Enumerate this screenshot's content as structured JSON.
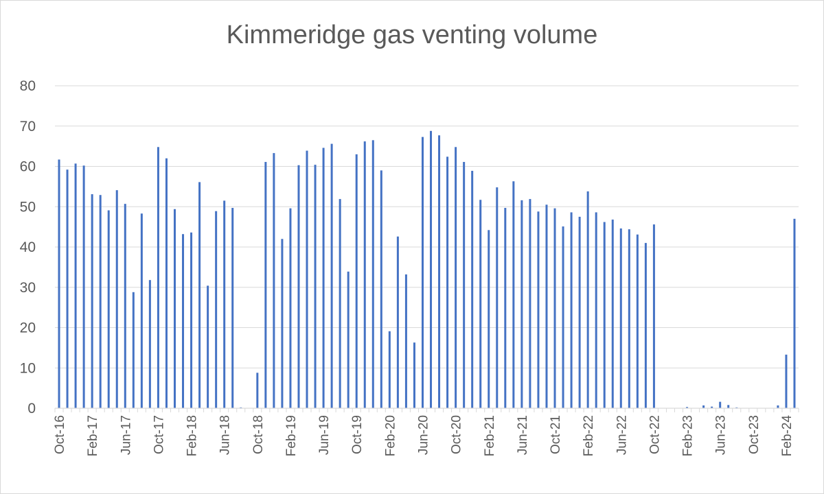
{
  "chart_data": {
    "type": "bar",
    "title": "Kimmeridge gas venting volume",
    "xlabel": "",
    "ylabel": "",
    "ylim": [
      0,
      80
    ],
    "yticks": [
      "0",
      "10",
      "20",
      "30",
      "40",
      "50",
      "60",
      "70",
      "80"
    ],
    "grid": true,
    "legend": "none",
    "bar_color": "#4472c4",
    "categories": [
      "Oct-16",
      "Nov-16",
      "Dec-16",
      "Jan-17",
      "Feb-17",
      "Mar-17",
      "Apr-17",
      "May-17",
      "Jun-17",
      "Jul-17",
      "Aug-17",
      "Sep-17",
      "Oct-17",
      "Nov-17",
      "Dec-17",
      "Jan-18",
      "Feb-18",
      "Mar-18",
      "Apr-18",
      "May-18",
      "Jun-18",
      "Jul-18",
      "Aug-18",
      "Sep-18",
      "Oct-18",
      "Nov-18",
      "Dec-18",
      "Jan-19",
      "Feb-19",
      "Mar-19",
      "Apr-19",
      "May-19",
      "Jun-19",
      "Jul-19",
      "Aug-19",
      "Sep-19",
      "Oct-19",
      "Nov-19",
      "Dec-19",
      "Jan-20",
      "Feb-20",
      "Mar-20",
      "Apr-20",
      "May-20",
      "Jun-20",
      "Jul-20",
      "Aug-20",
      "Sep-20",
      "Oct-20",
      "Nov-20",
      "Dec-20",
      "Jan-21",
      "Feb-21",
      "Mar-21",
      "Apr-21",
      "May-21",
      "Jun-21",
      "Jul-21",
      "Aug-21",
      "Sep-21",
      "Oct-21",
      "Nov-21",
      "Dec-21",
      "Jan-22",
      "Feb-22",
      "Mar-22",
      "Apr-22",
      "May-22",
      "Jun-22",
      "Jul-22",
      "Aug-22",
      "Sep-22",
      "Oct-22",
      "Nov-22",
      "Dec-22",
      "Jan-23",
      "Feb-23",
      "Mar-23",
      "Apr-23",
      "May-23",
      "Jun-23",
      "Jul-23",
      "Aug-23",
      "Sep-23",
      "Oct-23",
      "Nov-23",
      "Dec-23",
      "Jan-24",
      "Feb-24",
      "Mar-24"
    ],
    "xtick_labels": [
      "Oct-16",
      "Feb-17",
      "Jun-17",
      "Oct-17",
      "Feb-18",
      "Jun-18",
      "Oct-18",
      "Feb-19",
      "Jun-19",
      "Oct-19",
      "Feb-20",
      "Jun-20",
      "Oct-20",
      "Feb-21",
      "Jun-21",
      "Oct-21",
      "Feb-22",
      "Jun-22",
      "Oct-22",
      "Feb-23",
      "Jun-23",
      "Oct-23",
      "Feb-24"
    ],
    "values": [
      61.7,
      59.2,
      60.7,
      60.2,
      53.1,
      52.9,
      49.1,
      54.1,
      50.7,
      28.8,
      48.3,
      31.8,
      64.8,
      62.0,
      49.4,
      43.2,
      43.6,
      56.1,
      30.4,
      48.9,
      51.5,
      49.7,
      0.2,
      0,
      8.8,
      61.1,
      63.3,
      42.0,
      49.6,
      60.3,
      63.9,
      60.4,
      64.6,
      65.6,
      51.9,
      33.9,
      63.0,
      66.2,
      66.5,
      59.0,
      19.1,
      42.6,
      33.2,
      16.3,
      67.3,
      68.8,
      67.7,
      62.4,
      64.8,
      61.1,
      58.9,
      51.7,
      44.2,
      54.8,
      49.7,
      56.3,
      51.6,
      51.9,
      48.8,
      50.5,
      49.6,
      45.1,
      48.6,
      47.5,
      53.8,
      48.6,
      46.2,
      46.8,
      44.6,
      44.4,
      43.1,
      41.0,
      45.6,
      0,
      0,
      0,
      0.3,
      0,
      0.7,
      0.4,
      1.6,
      0.8,
      0.2,
      0,
      0,
      0,
      0,
      0.7,
      13.3,
      47.0
    ]
  }
}
